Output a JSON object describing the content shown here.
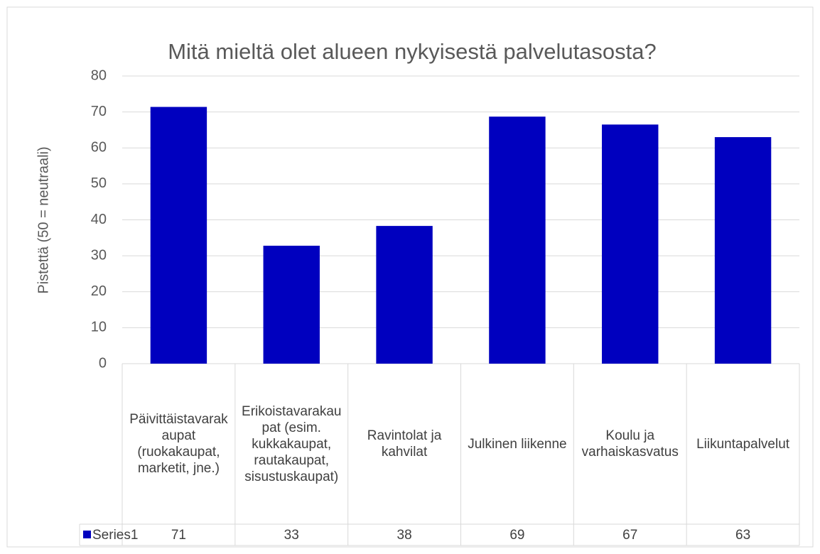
{
  "chart_data": {
    "type": "bar",
    "title": "Mitä mieltä olet alueen nykyisestä palvelutasosta?",
    "y_label": "Pistettä (50 = neutraali)",
    "categories": [
      "Päivittäistavarakaupat (ruokakaupat, marketit, jne.)",
      "Erikoistavarakaupat (esim. kukkakaupat, rautakaupat, sisustuskaupat)",
      "Ravintolat ja kahvilat",
      "Julkinen liikenne",
      "Koulu ja varhaiskasvatus",
      "Liikuntapalvelut"
    ],
    "series": [
      {
        "name": "Series1",
        "color": "#0000bf",
        "values": [
          71.4,
          32.8,
          38.3,
          68.7,
          66.5,
          63
        ],
        "value_labels": [
          "71",
          "33",
          "38",
          "69",
          "67",
          "63"
        ]
      }
    ],
    "ylim": [
      0,
      80
    ],
    "yticks": [
      0,
      10,
      20,
      30,
      40,
      50,
      60,
      70,
      80
    ],
    "grid": true,
    "data_table": true
  }
}
